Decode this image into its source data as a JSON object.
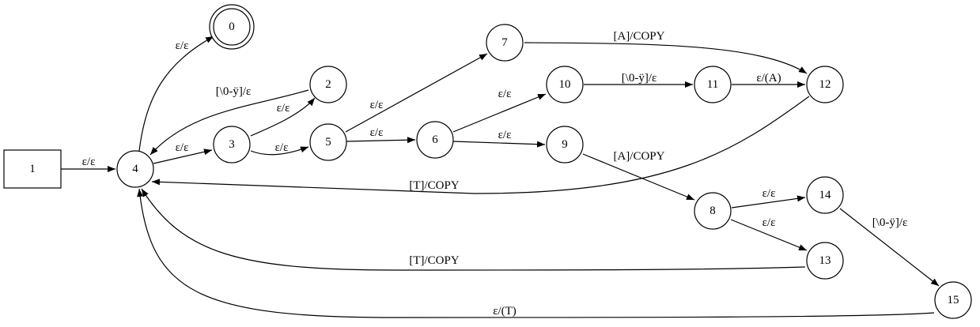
{
  "nodes": [
    {
      "id": "0",
      "label": "0",
      "shape": "doublecircle"
    },
    {
      "id": "1",
      "label": "1",
      "shape": "box"
    },
    {
      "id": "2",
      "label": "2",
      "shape": "circle"
    },
    {
      "id": "3",
      "label": "3",
      "shape": "circle"
    },
    {
      "id": "4",
      "label": "4",
      "shape": "circle"
    },
    {
      "id": "5",
      "label": "5",
      "shape": "circle"
    },
    {
      "id": "6",
      "label": "6",
      "shape": "circle"
    },
    {
      "id": "7",
      "label": "7",
      "shape": "circle"
    },
    {
      "id": "8",
      "label": "8",
      "shape": "circle"
    },
    {
      "id": "9",
      "label": "9",
      "shape": "circle"
    },
    {
      "id": "10",
      "label": "10",
      "shape": "circle"
    },
    {
      "id": "11",
      "label": "11",
      "shape": "circle"
    },
    {
      "id": "12",
      "label": "12",
      "shape": "circle"
    },
    {
      "id": "13",
      "label": "13",
      "shape": "circle"
    },
    {
      "id": "14",
      "label": "14",
      "shape": "circle"
    },
    {
      "id": "15",
      "label": "15",
      "shape": "circle"
    }
  ],
  "edges": [
    {
      "from": "1",
      "to": "4",
      "label": "ε/ε"
    },
    {
      "from": "4",
      "to": "0",
      "label": "ε/ε"
    },
    {
      "from": "2",
      "to": "4",
      "label": "[\\0-ÿ]/ε"
    },
    {
      "from": "4",
      "to": "3",
      "label": "ε/ε"
    },
    {
      "from": "3",
      "to": "2",
      "label": "ε/ε"
    },
    {
      "from": "3",
      "to": "5",
      "label": "ε/ε"
    },
    {
      "from": "5",
      "to": "7",
      "label": "ε/ε"
    },
    {
      "from": "5",
      "to": "6",
      "label": "ε/ε"
    },
    {
      "from": "6",
      "to": "10",
      "label": "ε/ε"
    },
    {
      "from": "6",
      "to": "9",
      "label": "ε/ε"
    },
    {
      "from": "7",
      "to": "12",
      "label": "[A]/COPY"
    },
    {
      "from": "10",
      "to": "11",
      "label": "[\\0-ÿ]/ε"
    },
    {
      "from": "11",
      "to": "12",
      "label": "ε/(A)"
    },
    {
      "from": "12",
      "to": "4",
      "label": "[T]/COPY"
    },
    {
      "from": "9",
      "to": "8",
      "label": "[A]/COPY"
    },
    {
      "from": "8",
      "to": "14",
      "label": "ε/ε"
    },
    {
      "from": "8",
      "to": "13",
      "label": "ε/ε"
    },
    {
      "from": "14",
      "to": "15",
      "label": "[\\0-ÿ]/ε"
    },
    {
      "from": "13",
      "to": "4",
      "label": "[T]/COPY"
    },
    {
      "from": "15",
      "to": "4",
      "label": "ε/(T)"
    }
  ]
}
